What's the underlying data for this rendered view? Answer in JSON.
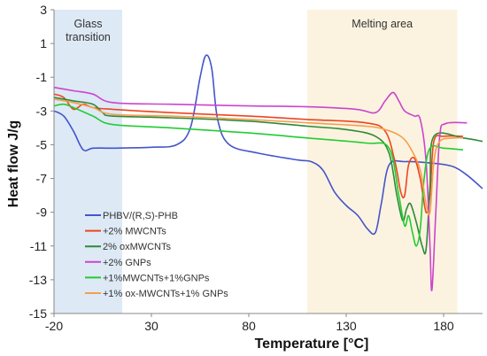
{
  "chart_data": {
    "type": "line",
    "xlabel": "Temperature [°C]",
    "ylabel": "Heat flow J/g",
    "xlim": [
      -20,
      200
    ],
    "ylim": [
      -15,
      3
    ],
    "xticks": [
      -20,
      30,
      80,
      130,
      180
    ],
    "yticks": [
      3,
      1,
      -1,
      -3,
      -5,
      -7,
      -9,
      -11,
      -13,
      -15
    ],
    "grid": false,
    "legend_position": "bottom-left",
    "regions": [
      {
        "label_lines": [
          "Glass",
          "transition"
        ],
        "x_range": [
          -20,
          15
        ],
        "color": "#dde9f5"
      },
      {
        "label_lines": [
          "Melting area"
        ],
        "x_range": [
          110,
          187
        ],
        "color": "#fbf3df"
      }
    ],
    "series": [
      {
        "name": "PHBV/(R,S)-PHB",
        "color": "#4455cc",
        "points": [
          [
            -20,
            -3.0
          ],
          [
            -15,
            -3.3
          ],
          [
            -10,
            -4.2
          ],
          [
            -5,
            -5.3
          ],
          [
            0,
            -5.2
          ],
          [
            10,
            -5.2
          ],
          [
            30,
            -5.15
          ],
          [
            43,
            -5.0
          ],
          [
            50,
            -4.0
          ],
          [
            55,
            -1.0
          ],
          [
            58,
            0.3
          ],
          [
            61,
            -0.5
          ],
          [
            64,
            -3.5
          ],
          [
            70,
            -5.0
          ],
          [
            85,
            -5.5
          ],
          [
            105,
            -5.9
          ],
          [
            112,
            -6.0
          ],
          [
            118,
            -6.5
          ],
          [
            124,
            -7.8
          ],
          [
            130,
            -8.6
          ],
          [
            136,
            -9.2
          ],
          [
            141,
            -10.0
          ],
          [
            145,
            -10.2
          ],
          [
            148,
            -8.5
          ],
          [
            152,
            -6.2
          ],
          [
            160,
            -6.0
          ],
          [
            175,
            -6.1
          ],
          [
            185,
            -6.3
          ],
          [
            192,
            -6.8
          ],
          [
            200,
            -7.6
          ]
        ]
      },
      {
        "name": "+2% MWCNTs",
        "color": "#ee4422",
        "points": [
          [
            -20,
            -2.0
          ],
          [
            -15,
            -2.2
          ],
          [
            -10,
            -2.9
          ],
          [
            -5,
            -2.6
          ],
          [
            0,
            -2.8
          ],
          [
            10,
            -2.9
          ],
          [
            40,
            -3.1
          ],
          [
            80,
            -3.3
          ],
          [
            110,
            -3.5
          ],
          [
            140,
            -3.7
          ],
          [
            150,
            -4.2
          ],
          [
            155,
            -6.0
          ],
          [
            158,
            -7.8
          ],
          [
            160,
            -8.0
          ],
          [
            162,
            -6.2
          ],
          [
            165,
            -5.8
          ],
          [
            168,
            -7.0
          ],
          [
            171,
            -9.0
          ],
          [
            173,
            -8.0
          ],
          [
            175,
            -4.8
          ],
          [
            180,
            -4.5
          ],
          [
            190,
            -4.5
          ]
        ]
      },
      {
        "name": "2% oxMWCNTs",
        "color": "#2d8a3a",
        "points": [
          [
            -20,
            -2.2
          ],
          [
            -10,
            -2.4
          ],
          [
            0,
            -2.6
          ],
          [
            5,
            -3.1
          ],
          [
            10,
            -3.3
          ],
          [
            40,
            -3.4
          ],
          [
            80,
            -3.6
          ],
          [
            110,
            -3.9
          ],
          [
            130,
            -4.1
          ],
          [
            145,
            -4.5
          ],
          [
            152,
            -5.5
          ],
          [
            156,
            -8.0
          ],
          [
            159,
            -9.5
          ],
          [
            161,
            -8.8
          ],
          [
            163,
            -8.5
          ],
          [
            166,
            -9.6
          ],
          [
            169,
            -11.0
          ],
          [
            171,
            -11.2
          ],
          [
            173,
            -7.5
          ],
          [
            175,
            -4.5
          ],
          [
            190,
            -4.6
          ],
          [
            200,
            -4.8
          ]
        ]
      },
      {
        "name": "+2% GNPs",
        "color": "#cc44cc",
        "points": [
          [
            -20,
            -1.6
          ],
          [
            -10,
            -1.8
          ],
          [
            0,
            -2.0
          ],
          [
            10,
            -2.5
          ],
          [
            40,
            -2.6
          ],
          [
            80,
            -2.7
          ],
          [
            110,
            -2.75
          ],
          [
            135,
            -2.9
          ],
          [
            145,
            -3.1
          ],
          [
            150,
            -2.4
          ],
          [
            154,
            -1.9
          ],
          [
            157,
            -2.4
          ],
          [
            160,
            -3.0
          ],
          [
            165,
            -3.3
          ],
          [
            168,
            -3.5
          ],
          [
            171,
            -6.0
          ],
          [
            173,
            -11.0
          ],
          [
            174,
            -13.6
          ],
          [
            176,
            -9.0
          ],
          [
            178,
            -4.5
          ],
          [
            181,
            -3.75
          ],
          [
            192,
            -3.7
          ]
        ]
      },
      {
        "name": "+1%MWCNTs+1%GNPs",
        "color": "#22cc33",
        "points": [
          [
            -20,
            -2.7
          ],
          [
            -15,
            -2.6
          ],
          [
            -10,
            -2.8
          ],
          [
            0,
            -3.3
          ],
          [
            10,
            -3.8
          ],
          [
            40,
            -4.0
          ],
          [
            80,
            -4.3
          ],
          [
            110,
            -4.6
          ],
          [
            140,
            -4.9
          ],
          [
            152,
            -5.2
          ],
          [
            157,
            -8.0
          ],
          [
            160,
            -9.8
          ],
          [
            162,
            -9.2
          ],
          [
            164,
            -10.2
          ],
          [
            166,
            -11.0
          ],
          [
            168,
            -10.0
          ],
          [
            170,
            -7.0
          ],
          [
            173,
            -5.2
          ],
          [
            180,
            -5.2
          ],
          [
            190,
            -5.3
          ]
        ]
      },
      {
        "name": "+1% ox-MWCNTs+1% GNPs",
        "color": "#f5a050",
        "points": [
          [
            -20,
            -2.3
          ],
          [
            -10,
            -2.5
          ],
          [
            0,
            -2.8
          ],
          [
            10,
            -3.2
          ],
          [
            40,
            -3.3
          ],
          [
            80,
            -3.5
          ],
          [
            110,
            -3.7
          ],
          [
            140,
            -3.9
          ],
          [
            150,
            -4.1
          ],
          [
            158,
            -4.5
          ],
          [
            163,
            -5.2
          ],
          [
            168,
            -6.5
          ],
          [
            171,
            -8.5
          ],
          [
            173,
            -9.0
          ],
          [
            175,
            -6.0
          ],
          [
            178,
            -4.8
          ],
          [
            185,
            -4.6
          ],
          [
            190,
            -4.6
          ]
        ]
      }
    ]
  }
}
